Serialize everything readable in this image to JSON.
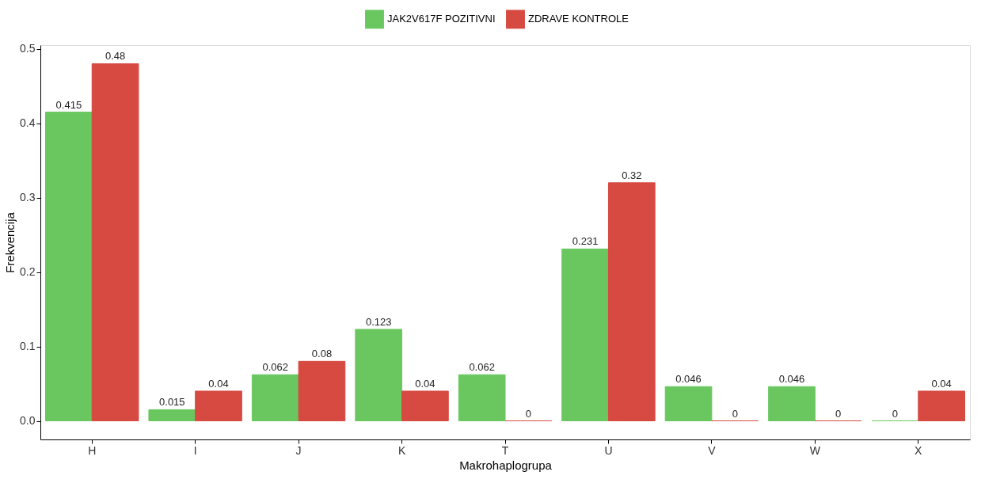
{
  "chart_data": {
    "type": "bar",
    "xlabel": "Makrohaplogrupa",
    "ylabel": "Frekvencija",
    "categories": [
      "H",
      "I",
      "J",
      "K",
      "T",
      "U",
      "V",
      "W",
      "X"
    ],
    "series": [
      {
        "name": "JAK2V617F POZITIVNI",
        "color": "#6ac760",
        "values": [
          0.415,
          0.015,
          0.062,
          0.123,
          0.062,
          0.231,
          0.046,
          0.046,
          0
        ]
      },
      {
        "name": "ZDRAVE KONTROLE",
        "color": "#d64a42",
        "values": [
          0.48,
          0.04,
          0.08,
          0.04,
          0,
          0.32,
          0,
          0,
          0.04
        ]
      }
    ],
    "ylim": [
      -0.025,
      0.505
    ],
    "yticks": [
      {
        "value": 0,
        "label": "0.0"
      },
      0.1,
      0.2,
      0.3,
      0.4,
      0.5
    ],
    "data_labels": true,
    "grid": false,
    "legend": "top"
  }
}
